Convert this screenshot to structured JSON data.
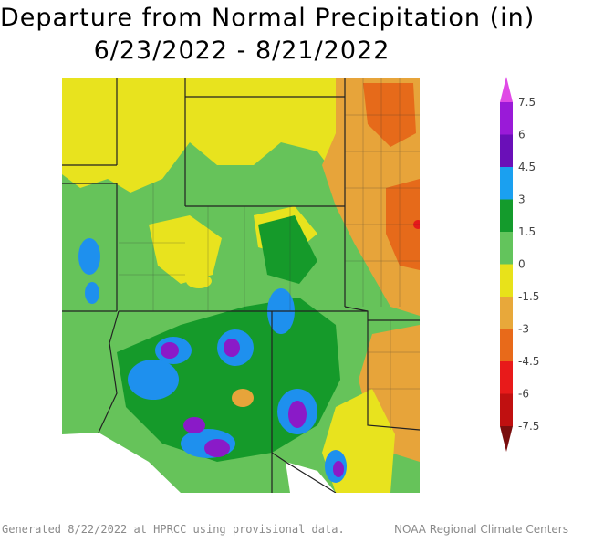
{
  "title": {
    "line1": "Departure from Normal Precipitation (in)",
    "line2": "6/23/2022 - 8/21/2022"
  },
  "legend": {
    "labels": [
      "7.5",
      "6",
      "4.5",
      "3",
      "1.5",
      "0",
      "-1.5",
      "-3",
      "-4.5",
      "-6",
      "-7.5"
    ],
    "colors": [
      "#e04ae6",
      "#9a1ad8",
      "#6a0fb8",
      "#1aa0f0",
      "#149b2c",
      "#63c45c",
      "#e8e21a",
      "#e8a83a",
      "#e86a1a",
      "#e81a1a",
      "#c01010",
      "#7a0e0e"
    ]
  },
  "map": {
    "colors": {
      "very_wet": "#8a1ac8",
      "wet_blue": "#1e90ee",
      "wet_dark_green": "#159a2a",
      "wet_green": "#66c35a",
      "near_normal_dry": "#e8e31e",
      "dry_orange": "#e7a43a",
      "very_dry": "#e66a1a",
      "extreme_dry": "#e51a1a"
    }
  },
  "footer": {
    "left": "Generated 8/22/2022 at HPRCC using provisional data.",
    "right": "NOAA Regional Climate Centers"
  }
}
